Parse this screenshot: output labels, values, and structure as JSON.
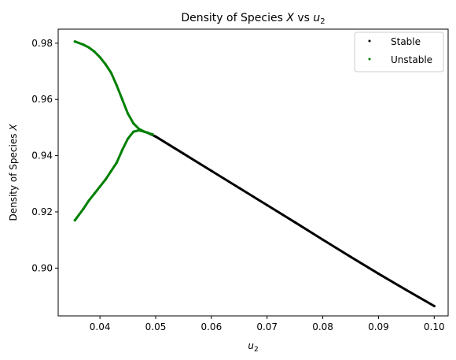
{
  "chart_data": {
    "type": "scatter",
    "title": "Density of Species X vs u2",
    "title_parts": {
      "prefix": "Density of Species ",
      "var": "X",
      "mid": " vs ",
      "sym": "u",
      "sub": "2"
    },
    "xlabel": "u2",
    "xlabel_parts": {
      "sym": "u",
      "sub": "2"
    },
    "ylabel": "Density of Species X",
    "ylabel_parts": {
      "prefix": "Density of Species ",
      "var": "X"
    },
    "xlim": [
      0.0325,
      0.1025
    ],
    "ylim": [
      0.883,
      0.985
    ],
    "xticks": [
      0.04,
      0.05,
      0.06,
      0.07,
      0.08,
      0.09,
      0.1
    ],
    "xtick_labels": [
      "0.04",
      "0.05",
      "0.06",
      "0.07",
      "0.08",
      "0.09",
      "0.10"
    ],
    "yticks": [
      0.9,
      0.92,
      0.94,
      0.96,
      0.98
    ],
    "ytick_labels": [
      "0.90",
      "0.92",
      "0.94",
      "0.96",
      "0.98"
    ],
    "grid": false,
    "legend_position": "top-right",
    "series": [
      {
        "name": "Stable",
        "color": "#000000",
        "x": [
          0.0485,
          0.05,
          0.055,
          0.06,
          0.065,
          0.07,
          0.075,
          0.08,
          0.085,
          0.09,
          0.095,
          0.1
        ],
        "y": [
          0.9482,
          0.9468,
          0.9407,
          0.9346,
          0.9285,
          0.9224,
          0.9163,
          0.9101,
          0.904,
          0.898,
          0.8922,
          0.8865
        ]
      },
      {
        "name": "Unstable",
        "color": "#008000",
        "x": [
          0.0355,
          0.037,
          0.038,
          0.039,
          0.04,
          0.041,
          0.042,
          0.043,
          0.044,
          0.045,
          0.046,
          0.047,
          0.048,
          0.0495,
          0.048,
          0.047,
          0.046,
          0.045,
          0.044,
          0.043,
          0.042,
          0.041,
          0.04,
          0.039,
          0.038,
          0.037,
          0.0355
        ],
        "y": [
          0.9806,
          0.9795,
          0.9785,
          0.977,
          0.975,
          0.9725,
          0.9695,
          0.965,
          0.96,
          0.955,
          0.9515,
          0.9495,
          0.9485,
          0.9475,
          0.9485,
          0.949,
          0.9485,
          0.946,
          0.942,
          0.9375,
          0.9345,
          0.9315,
          0.929,
          0.9265,
          0.924,
          0.921,
          0.917
        ]
      }
    ]
  }
}
